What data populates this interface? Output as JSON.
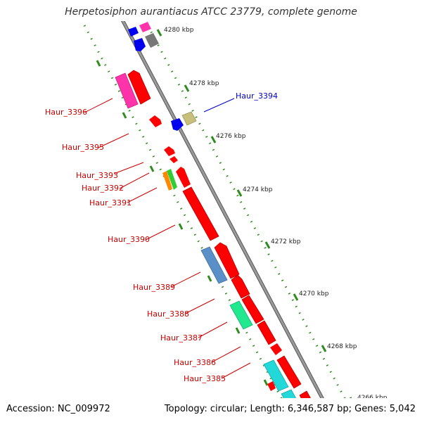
{
  "title": "Herpetosiphon aurantiacus ATCC 23779, complete genome",
  "footer": {
    "accession": "Accession: NC_009972",
    "topology": "Topology: circular; Length: 6,346,587 bp; Genes: 5,042"
  },
  "scale_ticks": [
    {
      "label": "4280 kbp",
      "value_kbp": 4280
    },
    {
      "label": "4278 kbp",
      "value_kbp": 4278
    },
    {
      "label": "4276 kbp",
      "value_kbp": 4276
    },
    {
      "label": "4274 kbp",
      "value_kbp": 4274
    },
    {
      "label": "4272 kbp",
      "value_kbp": 4272
    },
    {
      "label": "4270 kbp",
      "value_kbp": 4270
    },
    {
      "label": "4268 kbp",
      "value_kbp": 4268
    },
    {
      "label": "4266 kbp",
      "value_kbp": 4266
    }
  ],
  "gene_labels": [
    {
      "id": "Haur_3394",
      "color": "#0000cc"
    },
    {
      "id": "Haur_3396",
      "color": "#cc0000"
    },
    {
      "id": "Haur_3395",
      "color": "#cc0000"
    },
    {
      "id": "Haur_3393",
      "color": "#cc0000"
    },
    {
      "id": "Haur_3392",
      "color": "#cc0000"
    },
    {
      "id": "Haur_3391",
      "color": "#cc0000"
    },
    {
      "id": "Haur_3390",
      "color": "#cc0000"
    },
    {
      "id": "Haur_3389",
      "color": "#cc0000"
    },
    {
      "id": "Haur_3388",
      "color": "#cc0000"
    },
    {
      "id": "Haur_3387",
      "color": "#cc0000"
    },
    {
      "id": "Haur_3386",
      "color": "#cc0000"
    },
    {
      "id": "Haur_3385",
      "color": "#cc0000"
    }
  ],
  "colors": {
    "backbone": "#888888",
    "tick": "#2e8b1e",
    "red": "#ff0000",
    "blue": "#0000ee",
    "pink": "#ff33aa",
    "grey": "#777777",
    "olive": "#c8c07a",
    "steelblue": "#5b8fc7",
    "green_cyan": "#22e890",
    "cyan": "#22d8d8",
    "orange": "#ff8800",
    "green": "#33cc33",
    "lavender": "#c8c8ff"
  }
}
